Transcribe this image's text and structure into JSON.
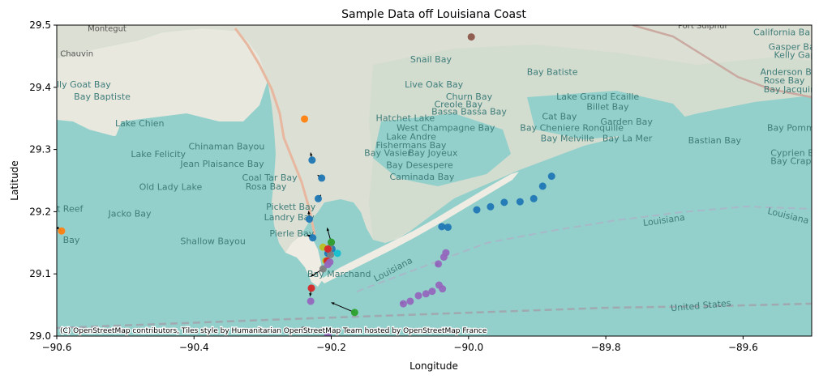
{
  "chart_data": {
    "type": "scatter",
    "title": "Sample Data off Louisiana Coast",
    "xlabel": "Longitude",
    "ylabel": "Latitude",
    "xlim": [
      -90.6,
      -89.5
    ],
    "ylim": [
      29.0,
      29.5
    ],
    "xticks": [
      "−90.6",
      "−90.4",
      "−90.2",
      "−90.0",
      "−89.8",
      "−89.6"
    ],
    "xtick_values": [
      -90.6,
      -90.4,
      -90.2,
      -90.0,
      -89.8,
      -89.6
    ],
    "yticks": [
      "29.0",
      "29.1",
      "29.2",
      "29.3",
      "29.4",
      "29.5"
    ],
    "ytick_values": [
      29.0,
      29.1,
      29.2,
      29.3,
      29.4,
      29.5
    ],
    "attribution": "(C) OpenStreetMap contributors, Tiles style by Humanitarian OpenStreetMap Team hosted by OpenStreetMap France",
    "colors": {
      "blue": "#1f77b4",
      "orange": "#ff7f0e",
      "green": "#2ca02c",
      "red": "#d62728",
      "purple": "#9467bd",
      "brown": "#8c564b",
      "pink": "#e377c2",
      "gray": "#7f7f7f",
      "olive": "#bcbd22",
      "cyan": "#17becf"
    },
    "points": [
      {
        "x": -89.996,
        "y": 29.481,
        "c": "brown"
      },
      {
        "x": -90.239,
        "y": 29.349,
        "c": "orange"
      },
      {
        "x": -90.593,
        "y": 29.169,
        "c": "orange",
        "dx": -0.008,
        "dy": 0.007
      },
      {
        "x": -90.228,
        "y": 29.283,
        "c": "blue",
        "dx": -0.002,
        "dy": 0.012
      },
      {
        "x": -90.214,
        "y": 29.254,
        "c": "blue",
        "dx": -0.006,
        "dy": 0.005
      },
      {
        "x": -90.219,
        "y": 29.221,
        "c": "blue",
        "dx": 0.004,
        "dy": 0.006
      },
      {
        "x": -90.232,
        "y": 29.188,
        "c": "blue",
        "dx": -0.001,
        "dy": 0.013
      },
      {
        "x": -90.227,
        "y": 29.158,
        "c": "blue",
        "dx": -0.008,
        "dy": 0.005
      },
      {
        "x": -90.199,
        "y": 29.14,
        "c": "blue"
      },
      {
        "x": -90.205,
        "y": 29.133,
        "c": "blue"
      },
      {
        "x": -89.988,
        "y": 29.203,
        "c": "blue"
      },
      {
        "x": -89.968,
        "y": 29.208,
        "c": "blue"
      },
      {
        "x": -89.948,
        "y": 29.215,
        "c": "blue"
      },
      {
        "x": -89.925,
        "y": 29.216,
        "c": "blue"
      },
      {
        "x": -89.905,
        "y": 29.221,
        "c": "blue"
      },
      {
        "x": -89.892,
        "y": 29.241,
        "c": "blue"
      },
      {
        "x": -89.879,
        "y": 29.257,
        "c": "blue"
      },
      {
        "x": -90.039,
        "y": 29.176,
        "c": "blue"
      },
      {
        "x": -90.03,
        "y": 29.175,
        "c": "blue"
      },
      {
        "x": -90.2,
        "y": 29.15,
        "c": "gray",
        "dx": -0.006,
        "dy": 0.024
      },
      {
        "x": -90.203,
        "y": 29.141,
        "c": "gray"
      },
      {
        "x": -90.201,
        "y": 29.131,
        "c": "gray"
      },
      {
        "x": -90.212,
        "y": 29.108,
        "c": "gray",
        "dx": -0.018,
        "dy": -0.012
      },
      {
        "x": -90.24,
        "y": 29.01,
        "c": "gray"
      },
      {
        "x": -90.2,
        "y": 29.151,
        "c": "green"
      },
      {
        "x": -90.166,
        "y": 29.038,
        "c": "green",
        "dx": -0.034,
        "dy": 0.016
      },
      {
        "x": -90.212,
        "y": 29.143,
        "c": "olive"
      },
      {
        "x": -90.208,
        "y": 29.121,
        "c": "olive"
      },
      {
        "x": -90.205,
        "y": 29.14,
        "c": "red"
      },
      {
        "x": -90.206,
        "y": 29.121,
        "c": "red"
      },
      {
        "x": -90.229,
        "y": 29.077,
        "c": "red",
        "dx": -0.002,
        "dy": -0.013
      },
      {
        "x": -90.191,
        "y": 29.133,
        "c": "cyan"
      },
      {
        "x": -90.202,
        "y": 29.119,
        "c": "purple"
      },
      {
        "x": -90.205,
        "y": 29.115,
        "c": "purple"
      },
      {
        "x": -90.23,
        "y": 29.056,
        "c": "purple"
      },
      {
        "x": -90.033,
        "y": 29.134,
        "c": "purple"
      },
      {
        "x": -90.036,
        "y": 29.127,
        "c": "purple"
      },
      {
        "x": -90.044,
        "y": 29.116,
        "c": "purple",
        "dx": -0.004,
        "dy": -0.003
      },
      {
        "x": -90.038,
        "y": 29.076,
        "c": "purple"
      },
      {
        "x": -90.043,
        "y": 29.082,
        "c": "purple"
      },
      {
        "x": -90.053,
        "y": 29.072,
        "c": "purple"
      },
      {
        "x": -90.062,
        "y": 29.068,
        "c": "purple"
      },
      {
        "x": -90.073,
        "y": 29.065,
        "c": "purple"
      },
      {
        "x": -90.085,
        "y": 29.056,
        "c": "purple"
      },
      {
        "x": -90.095,
        "y": 29.052,
        "c": "purple",
        "dx": -0.004,
        "dy": 0.003
      },
      {
        "x": -90.205,
        "y": 29.001,
        "c": "purple"
      }
    ]
  },
  "map": {
    "place_labels": [
      {
        "text": "Montegut",
        "lon": -90.555,
        "lat": 29.49,
        "land": true
      },
      {
        "text": "Chauvin",
        "lon": -90.595,
        "lat": 29.45,
        "land": true
      },
      {
        "text": "Port Sulphur",
        "lon": -89.695,
        "lat": 29.495,
        "land": true
      },
      {
        "text": "California Ba",
        "lon": -89.585,
        "lat": 29.484,
        "land": false
      },
      {
        "text": "Gasper Bay",
        "lon": -89.563,
        "lat": 29.46,
        "land": false
      },
      {
        "text": "Kelly Gap",
        "lon": -89.555,
        "lat": 29.447,
        "land": false
      },
      {
        "text": "Snail Bay",
        "lon": -90.085,
        "lat": 29.44,
        "land": false
      },
      {
        "text": "Bay Batiste",
        "lon": -89.915,
        "lat": 29.42,
        "land": false
      },
      {
        "text": "Anderson Bay",
        "lon": -89.575,
        "lat": 29.42,
        "land": false
      },
      {
        "text": "Rose Bay",
        "lon": -89.57,
        "lat": 29.406,
        "land": false
      },
      {
        "text": "Bay Jacquine",
        "lon": -89.57,
        "lat": 29.392,
        "land": false
      },
      {
        "text": "lly Goat Bay",
        "lon": -90.6,
        "lat": 29.4,
        "land": false
      },
      {
        "text": "Live Oak Bay",
        "lon": -90.093,
        "lat": 29.4,
        "land": false
      },
      {
        "text": "Bay Baptiste",
        "lon": -90.575,
        "lat": 29.38,
        "land": false
      },
      {
        "text": "Churn Bay",
        "lon": -90.033,
        "lat": 29.38,
        "land": false
      },
      {
        "text": "Lake Grand Ecaille",
        "lon": -89.872,
        "lat": 29.38,
        "land": false
      },
      {
        "text": "Creole Bay",
        "lon": -90.05,
        "lat": 29.368,
        "land": false
      },
      {
        "text": "Billet Bay",
        "lon": -89.828,
        "lat": 29.364,
        "land": false
      },
      {
        "text": "Bassa Bassa Bay",
        "lon": -90.054,
        "lat": 29.356,
        "land": false
      },
      {
        "text": "Hatchet Lake",
        "lon": -90.135,
        "lat": 29.346,
        "land": false
      },
      {
        "text": "Cat Bay",
        "lon": -89.893,
        "lat": 29.348,
        "land": false
      },
      {
        "text": "Garden Bay",
        "lon": -89.808,
        "lat": 29.34,
        "land": false
      },
      {
        "text": "Lake Chien",
        "lon": -90.515,
        "lat": 29.337,
        "land": false
      },
      {
        "text": "West Champagne Bay",
        "lon": -90.105,
        "lat": 29.33,
        "land": false
      },
      {
        "text": "Bay Cheniere Ronquille",
        "lon": -89.925,
        "lat": 29.33,
        "land": false
      },
      {
        "text": "Bay Pomme d'o",
        "lon": -89.565,
        "lat": 29.33,
        "land": false
      },
      {
        "text": "Lake Andre",
        "lon": -90.12,
        "lat": 29.316,
        "land": false
      },
      {
        "text": "Bay Melville",
        "lon": -89.895,
        "lat": 29.313,
        "land": false
      },
      {
        "text": "Bay La Mer",
        "lon": -89.805,
        "lat": 29.313,
        "land": false
      },
      {
        "text": "Bastian Bay",
        "lon": -89.68,
        "lat": 29.31,
        "land": false
      },
      {
        "text": "Fishermans Bay",
        "lon": -90.135,
        "lat": 29.302,
        "land": false
      },
      {
        "text": "Chinaman Bayou",
        "lon": -90.408,
        "lat": 29.3,
        "land": false
      },
      {
        "text": "Bay Vasier",
        "lon": -90.152,
        "lat": 29.29,
        "land": false
      },
      {
        "text": "Bay Joyeux",
        "lon": -90.088,
        "lat": 29.29,
        "land": false
      },
      {
        "text": "Lake Felicity",
        "lon": -90.492,
        "lat": 29.288,
        "land": false
      },
      {
        "text": "Cyprien Bay",
        "lon": -89.56,
        "lat": 29.29,
        "land": false
      },
      {
        "text": "Bay Crapaud",
        "lon": -89.56,
        "lat": 29.277,
        "land": false
      },
      {
        "text": "Bay Desespere",
        "lon": -90.12,
        "lat": 29.27,
        "land": false
      },
      {
        "text": "Jean Plaisance Bay",
        "lon": -90.42,
        "lat": 29.272,
        "land": false
      },
      {
        "text": "Caminada Bay",
        "lon": -90.115,
        "lat": 29.251,
        "land": false
      },
      {
        "text": "Coal Tar Bay",
        "lon": -90.33,
        "lat": 29.25,
        "land": false
      },
      {
        "text": "Old Lady Lake",
        "lon": -90.48,
        "lat": 29.235,
        "land": false
      },
      {
        "text": "Rosa Bay",
        "lon": -90.325,
        "lat": 29.236,
        "land": false
      },
      {
        "text": "Pickett Bay",
        "lon": -90.295,
        "lat": 29.203,
        "land": false
      },
      {
        "text": "t Reef",
        "lon": -90.6,
        "lat": 29.2,
        "land": false
      },
      {
        "text": "Jacko Bay",
        "lon": -90.525,
        "lat": 29.192,
        "land": false
      },
      {
        "text": "Landry Bay",
        "lon": -90.298,
        "lat": 29.186,
        "land": false
      },
      {
        "text": "Pierle Bay",
        "lon": -90.29,
        "lat": 29.16,
        "land": false
      },
      {
        "text": "Bay",
        "lon": -90.591,
        "lat": 29.15,
        "land": false
      },
      {
        "text": "Shallow Bayou",
        "lon": -90.42,
        "lat": 29.148,
        "land": false
      },
      {
        "text": "Bay Marchand",
        "lon": -90.235,
        "lat": 29.095,
        "land": false
      },
      {
        "text": "Louisiana",
        "lon": -90.135,
        "lat": 29.087,
        "land": false,
        "rot": -28
      },
      {
        "text": "Louisiana",
        "lon": -89.745,
        "lat": 29.177,
        "land": false,
        "rot": -8
      },
      {
        "text": "Louisiana",
        "lon": -89.565,
        "lat": 29.197,
        "land": false,
        "rot": 14
      },
      {
        "text": "United States",
        "lon": -89.705,
        "lat": 29.04,
        "land": false,
        "rot": -5
      }
    ]
  }
}
